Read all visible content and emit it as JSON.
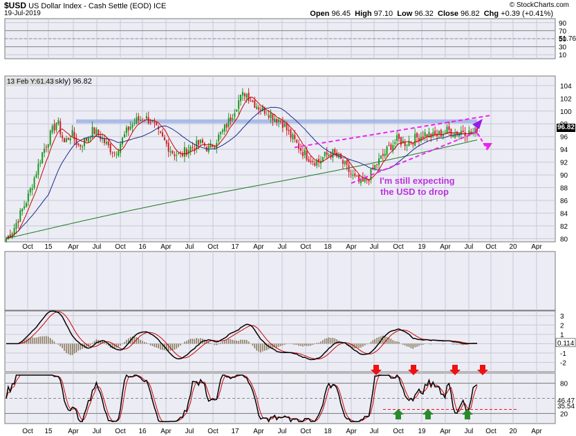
{
  "header": {
    "symbol": "$USD",
    "name": "US Dollar Index - Cash Settle (EOD)",
    "exchange": "ICE",
    "date": "19-Jul-2019",
    "brand": "© StockCharts.com",
    "open_label": "Open",
    "open": "96.45",
    "high_label": "High",
    "high": "97.10",
    "low_label": "Low",
    "low": "96.32",
    "close_label": "Close",
    "close": "96.82",
    "chg_label": "Chg",
    "chg": "+0.39 (+0.41%)",
    "overlay_legend": "13 Feb Y:61.43",
    "overlay_value": "skly) 96.82",
    "price_badge": "96.82"
  },
  "annotation": {
    "line1": "I'm still expecting",
    "line2": "the USD to drop",
    "color": "#bb33dd"
  },
  "colors": {
    "panel_bg": "#ececf5",
    "up_candle": "#1a9a1a",
    "down_candle": "#cc2222",
    "ma_fast": "#cc0000",
    "ma_mid": "#1a2a8a",
    "ma_slow": "#1a7a1a",
    "resistance_band": "#9fb4e4",
    "wedge": "#ee22ee",
    "signal_down": "#ee1111",
    "signal_up": "#2a8a2a"
  },
  "chart_data": [
    {
      "panel": "rsi_top",
      "type": "line",
      "y_ticks": [
        "90",
        "70",
        "50",
        "30",
        "10"
      ],
      "last_value": "51.76",
      "ylim": [
        0,
        100
      ]
    },
    {
      "panel": "price",
      "type": "candlestick",
      "y_ticks": [
        "104",
        "102",
        "100",
        "98",
        "96",
        "94",
        "92",
        "90",
        "88",
        "86",
        "84",
        "82",
        "80"
      ],
      "ylim": [
        79.5,
        105.5
      ],
      "last_close": 96.82,
      "x_ticks": [
        "Oct",
        "15",
        "Apr",
        "Jul",
        "Oct",
        "16",
        "Apr",
        "Jul",
        "Oct",
        "17",
        "Apr",
        "Jul",
        "Oct",
        "18",
        "Apr",
        "Jul",
        "Oct",
        "19",
        "Apr",
        "Jul",
        "Oct",
        "20",
        "Apr"
      ],
      "resistance_level": 98.5,
      "series": [
        {
          "name": "price",
          "values": [
            80.0,
            81.5,
            84.0,
            86.5,
            90.0,
            93.5,
            96.0,
            98.5,
            95.0,
            96.5,
            94.5,
            95.5,
            97.0,
            96.0,
            94.5,
            93.5,
            95.5,
            97.5,
            98.5,
            99.0,
            98.5,
            96.5,
            95.0,
            93.5,
            93.0,
            94.0,
            94.5,
            95.0,
            94.0,
            95.5,
            97.0,
            99.0,
            101.5,
            103.0,
            101.5,
            100.5,
            100.0,
            99.0,
            98.5,
            96.5,
            95.0,
            93.5,
            92.5,
            92.0,
            93.0,
            93.5,
            92.5,
            91.0,
            89.5,
            88.5,
            89.5,
            91.5,
            93.0,
            94.5,
            95.5,
            95.0,
            95.5,
            96.0,
            96.5,
            96.0,
            96.5,
            97.0,
            96.5,
            97.0,
            96.5,
            96.82
          ]
        }
      ]
    },
    {
      "panel": "macd",
      "type": "line",
      "y_ticks": [
        "3",
        "2",
        "1",
        "0",
        "-1",
        "-2"
      ],
      "last_value": "0.114",
      "ylim": [
        -3,
        3.5
      ]
    },
    {
      "panel": "stochastic",
      "type": "line",
      "y_ticks": [
        "80",
        "20"
      ],
      "last_values": [
        "46.47",
        "35.54"
      ],
      "ylim": [
        0,
        100
      ]
    }
  ]
}
